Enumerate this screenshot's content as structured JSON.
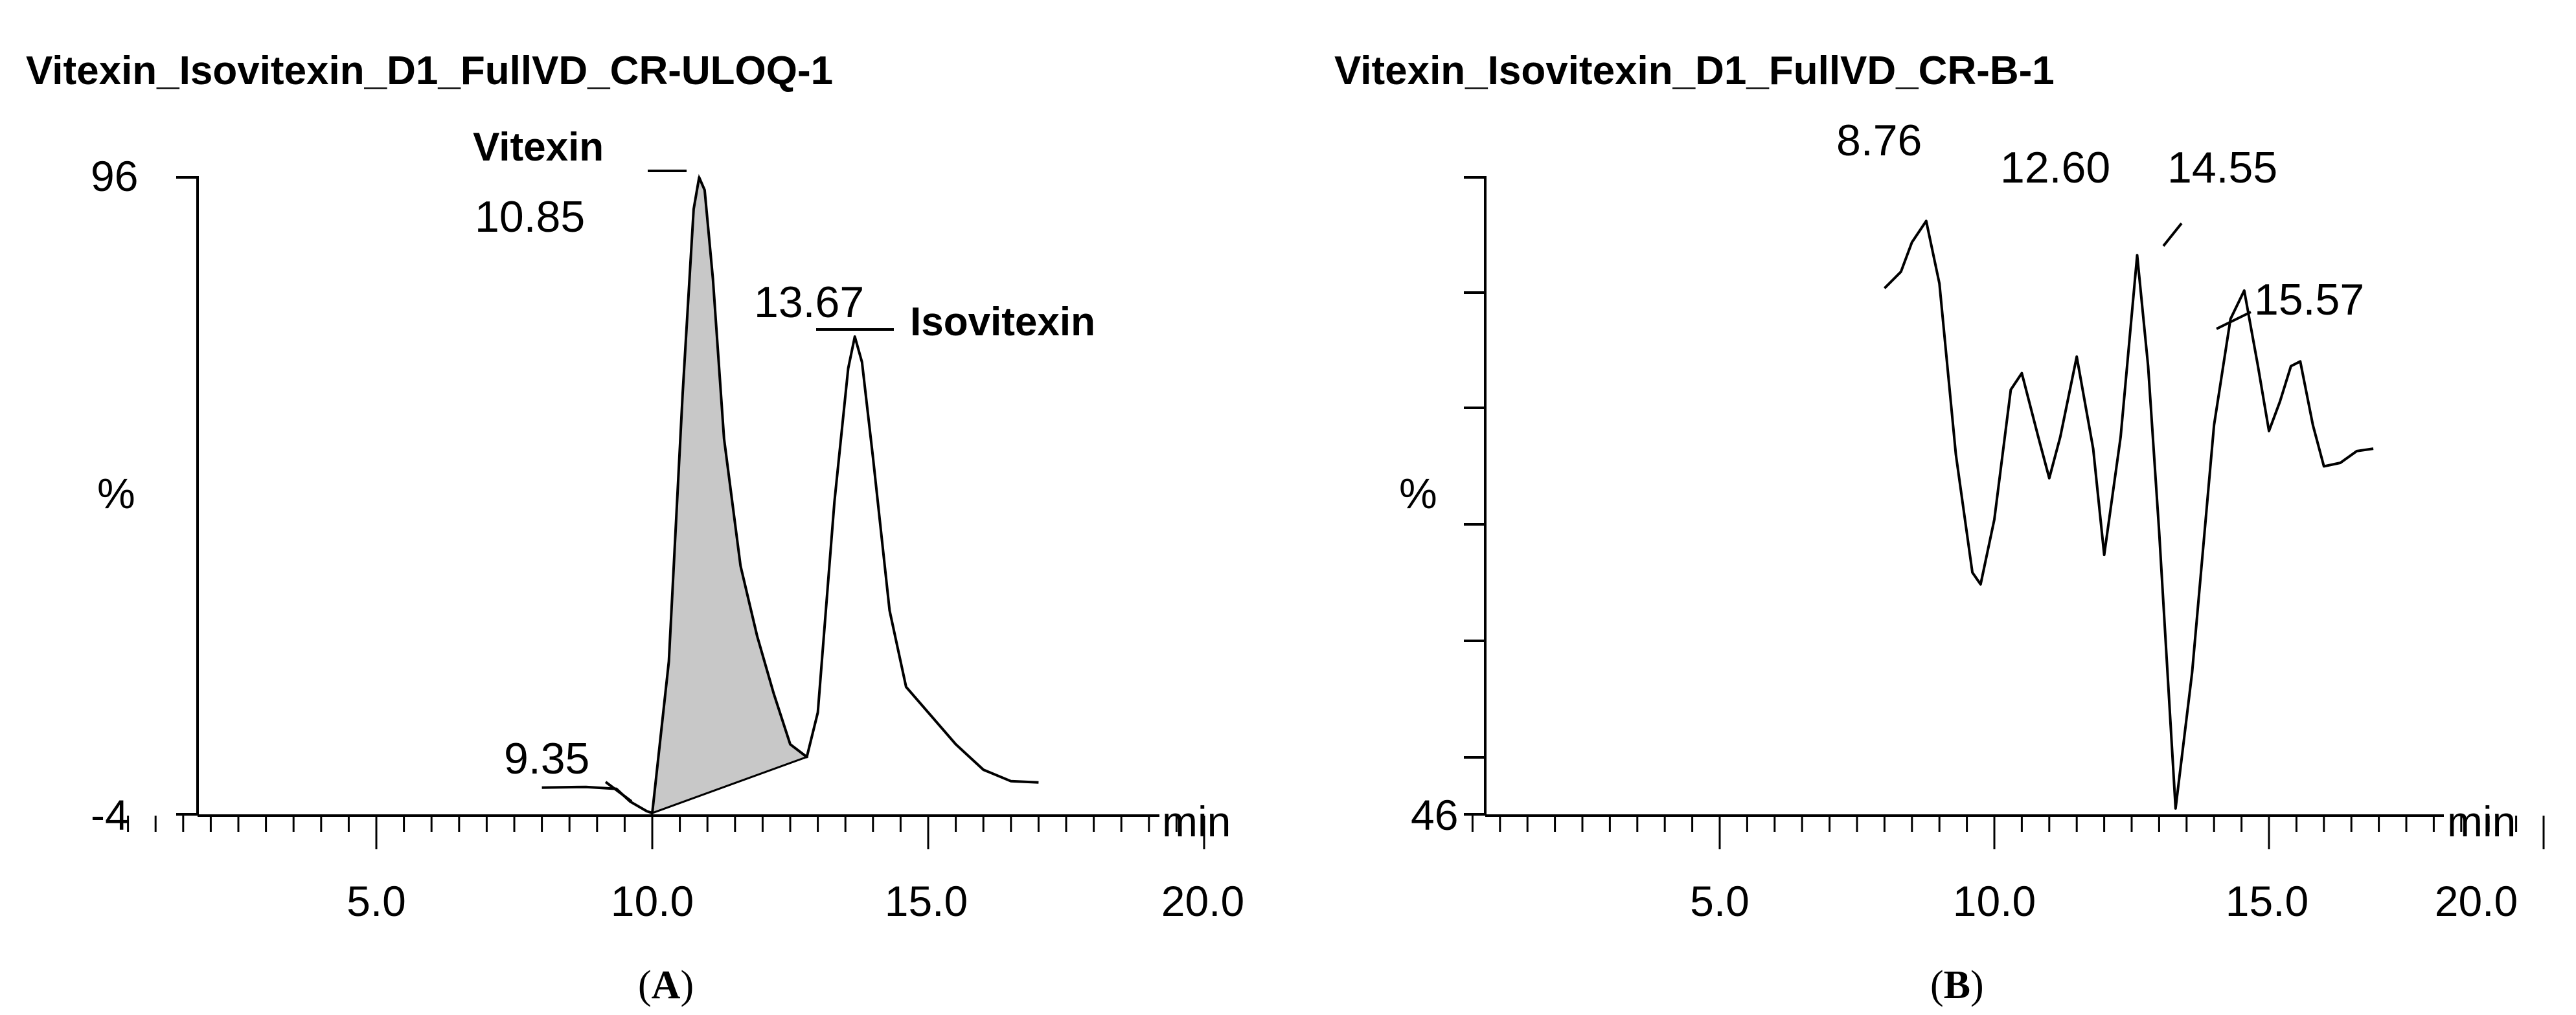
{
  "chart_data": [
    {
      "type": "line",
      "panel": "A",
      "title": "Vitexin_Isovitexin_D1_FullVD_CR-ULOQ-1",
      "xlabel": "min",
      "ylabel": "%",
      "x_ticks": [
        "5.0",
        "10.0",
        "15.0",
        "20.0"
      ],
      "y_ticks": [
        "96",
        "-4"
      ],
      "xlim": [
        0.4,
        20.5
      ],
      "ylim": [
        -4,
        96
      ],
      "fill_color": "#c8c8c8",
      "series": [
        {
          "x": [
            8.0,
            8.8,
            9.35,
            9.6,
            9.9,
            10.0,
            10.3,
            10.55,
            10.75,
            10.85,
            10.95,
            11.1,
            11.3,
            11.6,
            11.9,
            12.2,
            12.5,
            12.8,
            13.0,
            13.3,
            13.55,
            13.67,
            13.8,
            14.0,
            14.3,
            14.6,
            15.0,
            15.5,
            16.0,
            16.5,
            17.0
          ],
          "y": [
            0.2,
            0.3,
            0.0,
            -2.0,
            -3.5,
            -3.8,
            20.0,
            62.0,
            91.0,
            96.0,
            94.0,
            80.0,
            55.0,
            35.0,
            24.0,
            15.0,
            7.0,
            5.0,
            12.0,
            45.0,
            66.0,
            71.0,
            67.0,
            52.0,
            28.0,
            16.0,
            12.0,
            7.0,
            3.0,
            1.2,
            1.0
          ]
        }
      ],
      "integrated_peak": {
        "name": "Vitexin",
        "x_start": 10.0,
        "x_end": 12.8
      },
      "annotations": [
        {
          "text": "Vitexin",
          "x": 10.85,
          "y": 96
        },
        {
          "text": "10.85",
          "x": 10.85,
          "y": 96
        },
        {
          "text": "13.67",
          "x": 13.67,
          "y": 71
        },
        {
          "text": "Isovitexin",
          "x": 13.67,
          "y": 71
        },
        {
          "text": "9.35",
          "x": 9.35,
          "y": 0
        }
      ]
    },
    {
      "type": "line",
      "panel": "B",
      "title": "Vitexin_Isovitexin_D1_FullVD_CR-B-1",
      "xlabel": "min",
      "ylabel": "%",
      "x_ticks": [
        "5.0",
        "10.0",
        "15.0",
        "20.0"
      ],
      "y_ticks": [
        "46"
      ],
      "xlim": [
        0.4,
        20.5
      ],
      "ylim": [
        46,
        100
      ],
      "series": [
        {
          "x": [
            8.0,
            8.3,
            8.5,
            8.76,
            9.0,
            9.3,
            9.6,
            9.75,
            10.0,
            10.3,
            10.5,
            10.8,
            11.0,
            11.2,
            11.5,
            11.8,
            12.0,
            12.3,
            12.6,
            12.8,
            13.0,
            13.3,
            13.6,
            14.0,
            14.3,
            14.55,
            14.8,
            15.0,
            15.2,
            15.4,
            15.57,
            15.8,
            16.0,
            16.3,
            16.6,
            16.9
          ],
          "y": [
            90.6,
            92.0,
            94.5,
            96.3,
            91.0,
            76.5,
            66.5,
            65.5,
            71.0,
            82.0,
            83.4,
            78.0,
            74.5,
            78.0,
            84.8,
            77.0,
            68.0,
            78.0,
            93.4,
            84.0,
            70.0,
            46.5,
            58.0,
            79.0,
            88.0,
            90.4,
            84.0,
            78.5,
            81.0,
            84.0,
            84.4,
            79.0,
            75.5,
            75.8,
            76.8,
            77.0
          ]
        }
      ],
      "annotations": [
        {
          "text": "8.76",
          "x": 8.76,
          "y": 96.3
        },
        {
          "text": "12.60",
          "x": 12.6,
          "y": 93.4
        },
        {
          "text": "14.55",
          "x": 14.55,
          "y": 90.4
        },
        {
          "text": "15.57",
          "x": 15.57,
          "y": 84.4
        }
      ]
    }
  ],
  "captions": {
    "a": {
      "open": "(",
      "letter": "A",
      "close": ")"
    },
    "b": {
      "open": "(",
      "letter": "B",
      "close": ")"
    }
  }
}
